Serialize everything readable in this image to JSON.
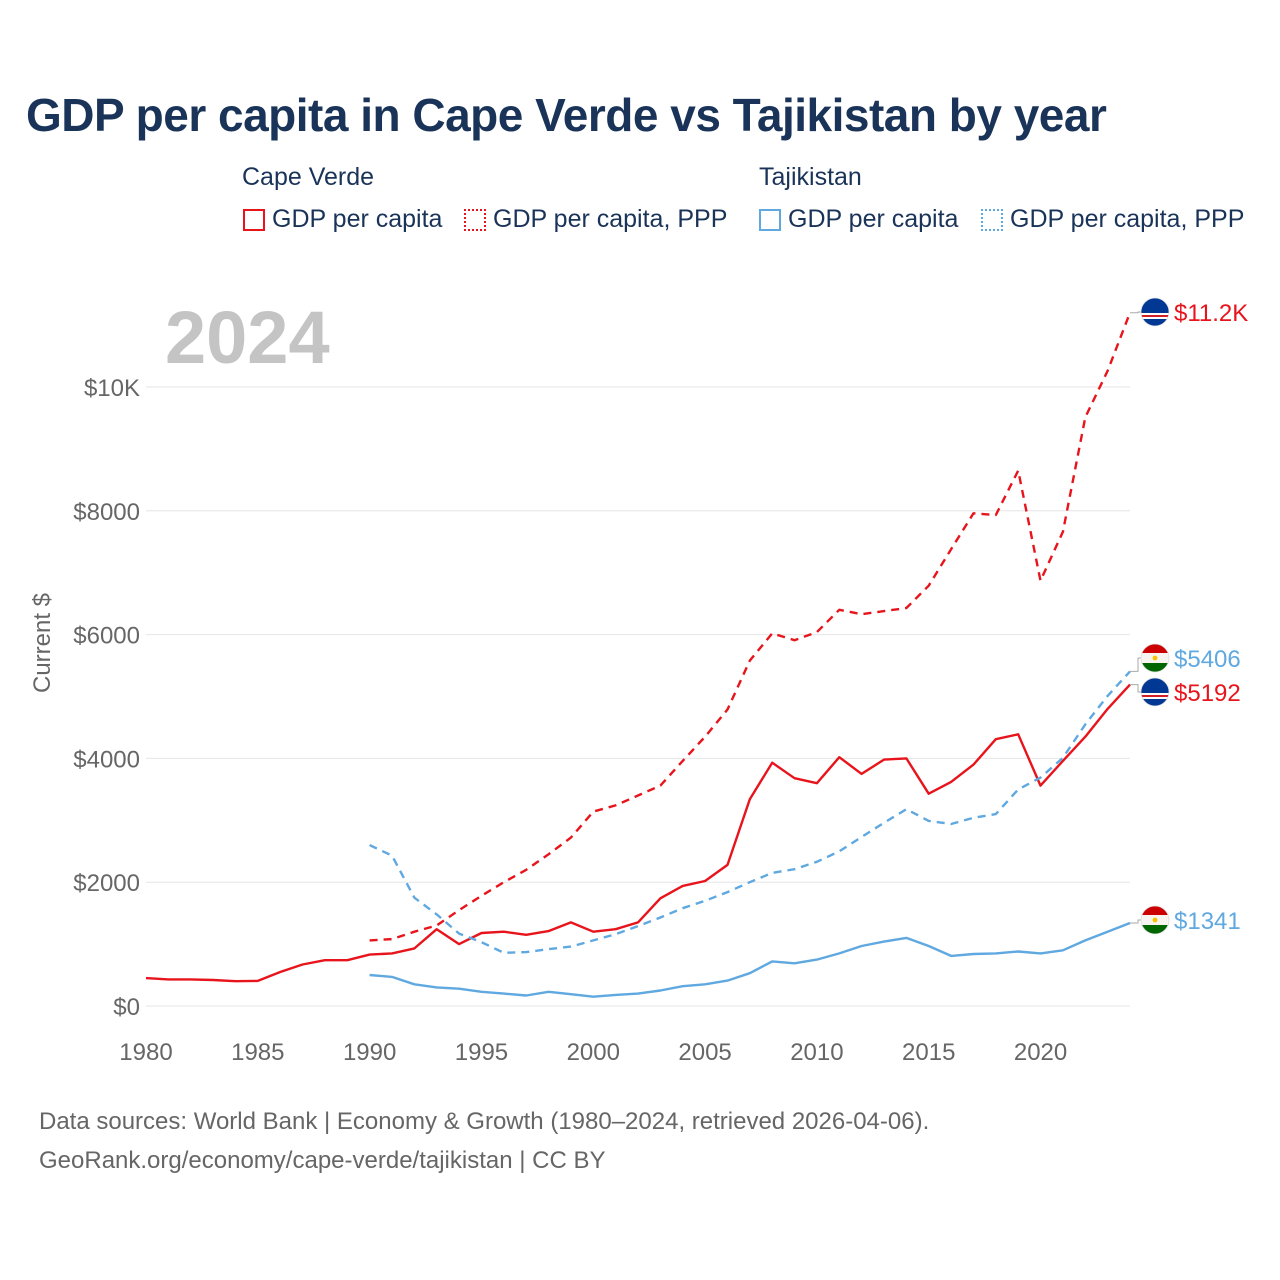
{
  "chart_data": {
    "type": "line",
    "title": "GDP per capita in Cape Verde vs Tajikistan by year",
    "year_label": "2024",
    "ylabel": "Current $",
    "xlabel": "",
    "xlim": [
      1980,
      2024
    ],
    "ylim": [
      0,
      11500
    ],
    "x_ticks": [
      1980,
      1985,
      1990,
      1995,
      2000,
      2005,
      2010,
      2015,
      2020
    ],
    "x_tick_labels": [
      "1980",
      "1985",
      "1990",
      "1995",
      "2000",
      "2005",
      "2010",
      "2015",
      "2020"
    ],
    "y_ticks": [
      0,
      2000,
      4000,
      6000,
      8000,
      10000
    ],
    "y_tick_labels": [
      "$0",
      "$2000",
      "$4000",
      "$6000",
      "$8000",
      "$10K"
    ],
    "legend": {
      "groups": [
        {
          "name": "Cape Verde",
          "items": [
            "GDP per capita",
            "GDP per capita, PPP"
          ]
        },
        {
          "name": "Tajikistan",
          "items": [
            "GDP per capita",
            "GDP per capita, PPP"
          ]
        }
      ]
    },
    "series": [
      {
        "name": "Cape Verde GDP per capita",
        "country": "Cape Verde",
        "color": "#e8141c",
        "dash": "solid",
        "x": [
          1980,
          1981,
          1982,
          1983,
          1984,
          1985,
          1986,
          1987,
          1988,
          1989,
          1990,
          1991,
          1992,
          1993,
          1994,
          1995,
          1996,
          1997,
          1998,
          1999,
          2000,
          2001,
          2002,
          2003,
          2004,
          2005,
          2006,
          2007,
          2008,
          2009,
          2010,
          2011,
          2012,
          2013,
          2014,
          2015,
          2016,
          2017,
          2018,
          2019,
          2020,
          2021,
          2022,
          2023,
          2024
        ],
        "values": [
          450,
          430,
          430,
          420,
          400,
          405,
          550,
          670,
          740,
          740,
          830,
          850,
          930,
          1240,
          1000,
          1180,
          1200,
          1150,
          1210,
          1350,
          1200,
          1240,
          1350,
          1740,
          1940,
          2020,
          2280,
          3340,
          3930,
          3680,
          3600,
          4020,
          3750,
          3980,
          4000,
          3430,
          3620,
          3900,
          4310,
          4390,
          3560,
          3960,
          4350,
          4800,
          5192
        ]
      },
      {
        "name": "Cape Verde GDP per capita, PPP",
        "country": "Cape Verde",
        "color": "#e8141c",
        "dash": "dashed",
        "x": [
          1990,
          1991,
          1992,
          1993,
          1994,
          1995,
          1996,
          1997,
          1998,
          1999,
          2000,
          2001,
          2002,
          2003,
          2004,
          2005,
          2006,
          2007,
          2008,
          2009,
          2010,
          2011,
          2012,
          2013,
          2014,
          2015,
          2016,
          2017,
          2018,
          2019,
          2020,
          2021,
          2022,
          2023,
          2024
        ],
        "values": [
          1060,
          1080,
          1200,
          1300,
          1550,
          1780,
          2000,
          2200,
          2450,
          2720,
          3140,
          3240,
          3400,
          3560,
          3960,
          4350,
          4790,
          5580,
          6020,
          5910,
          6040,
          6400,
          6330,
          6380,
          6430,
          6790,
          7380,
          7960,
          7930,
          8650,
          6870,
          7660,
          9510,
          10260,
          11200
        ]
      },
      {
        "name": "Tajikistan GDP per capita",
        "country": "Tajikistan",
        "color": "#5fa8e0",
        "dash": "solid",
        "x": [
          1990,
          1991,
          1992,
          1993,
          1994,
          1995,
          1996,
          1997,
          1998,
          1999,
          2000,
          2001,
          2002,
          2003,
          2004,
          2005,
          2006,
          2007,
          2008,
          2009,
          2010,
          2011,
          2012,
          2013,
          2014,
          2015,
          2016,
          2017,
          2018,
          2019,
          2020,
          2021,
          2022,
          2023,
          2024
        ],
        "values": [
          500,
          470,
          350,
          300,
          280,
          230,
          200,
          170,
          230,
          190,
          150,
          180,
          200,
          250,
          320,
          350,
          410,
          530,
          720,
          690,
          750,
          850,
          970,
          1040,
          1100,
          970,
          810,
          840,
          850,
          880,
          850,
          900,
          1060,
          1200,
          1341
        ]
      },
      {
        "name": "Tajikistan GDP per capita, PPP",
        "country": "Tajikistan",
        "color": "#5fa8e0",
        "dash": "dashed",
        "x": [
          1990,
          1991,
          1992,
          1993,
          1994,
          1995,
          1996,
          1997,
          1998,
          1999,
          2000,
          2001,
          2002,
          2003,
          2004,
          2005,
          2006,
          2007,
          2008,
          2009,
          2010,
          2011,
          2012,
          2013,
          2014,
          2015,
          2016,
          2017,
          2018,
          2019,
          2020,
          2021,
          2022,
          2023,
          2024
        ],
        "values": [
          2600,
          2430,
          1750,
          1480,
          1170,
          1030,
          860,
          870,
          920,
          960,
          1060,
          1160,
          1290,
          1430,
          1580,
          1700,
          1840,
          2000,
          2150,
          2210,
          2330,
          2500,
          2730,
          2960,
          3180,
          2990,
          2940,
          3040,
          3100,
          3500,
          3690,
          4010,
          4550,
          5010,
          5406
        ]
      }
    ],
    "end_labels": [
      {
        "series": 1,
        "text": "$11.2K",
        "value": 11200,
        "flag": "Cape Verde"
      },
      {
        "series": 3,
        "text": "$5406",
        "value": 5406,
        "flag": "Tajikistan"
      },
      {
        "series": 0,
        "text": "$5192",
        "value": 5192,
        "flag": "Cape Verde"
      },
      {
        "series": 2,
        "text": "$1341",
        "value": 1341,
        "flag": "Tajikistan"
      }
    ],
    "grid": true
  },
  "colors": {
    "cape_verde": "#e8141c",
    "tajikistan": "#5fa8e0",
    "title": "#1a3358",
    "axis_text": "#666666",
    "grid": "#e6e6e6",
    "year_watermark": "#c4c4c4"
  },
  "footer": {
    "line1": "Data sources: World Bank | Economy & Growth (1980–2024, retrieved 2026-04-06).",
    "line2": "GeoRank.org/economy/cape-verde/tajikistan | CC BY"
  }
}
